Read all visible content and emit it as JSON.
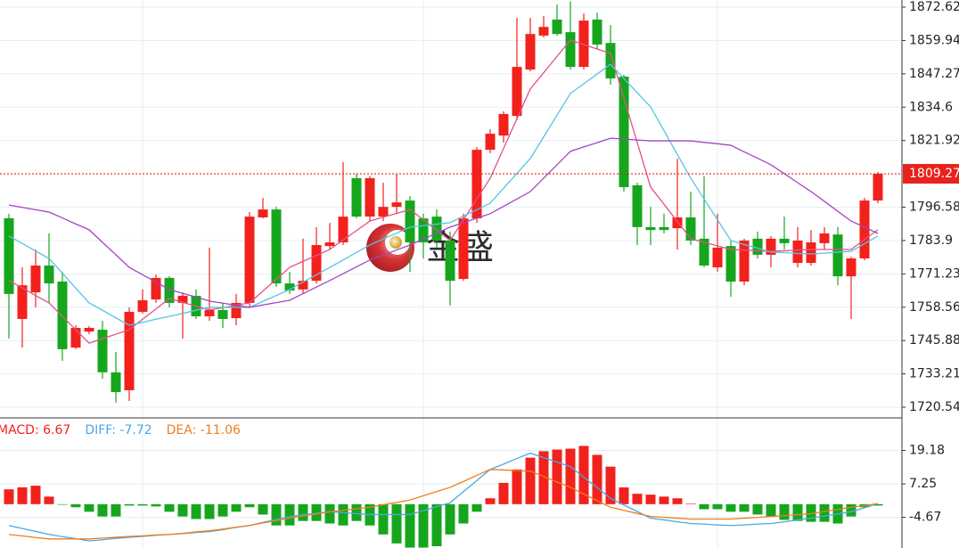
{
  "watermark": "金盛",
  "chart_data": [
    {
      "type": "candlestick",
      "categories": [
        null,
        null,
        null,
        null,
        null,
        null,
        null,
        null,
        null,
        null,
        null,
        null,
        null,
        null,
        null,
        null,
        null,
        null,
        null,
        null,
        null,
        null,
        null,
        null,
        null,
        null,
        null,
        null,
        null,
        null,
        null,
        null,
        null,
        null,
        null,
        null,
        null,
        null,
        null,
        null,
        null,
        null,
        null,
        null,
        null,
        null,
        null,
        null,
        null,
        null,
        null,
        null,
        null,
        null,
        null,
        null,
        null,
        null,
        null,
        null,
        null,
        null,
        null,
        null,
        null,
        null
      ],
      "open": [
        1792.4,
        1754.1,
        1764.2,
        1774.4,
        1768.3,
        1743.2,
        1749.3,
        1750.0,
        1733.8,
        1727.0,
        1756.8,
        1761.5,
        1769.7,
        1760.2,
        1762.9,
        1755.1,
        1757.5,
        1754.4,
        1760.2,
        1792.7,
        1795.7,
        1767.6,
        1765.3,
        1768.6,
        1781.8,
        1783.2,
        1807.6,
        1793.0,
        1793.0,
        1796.7,
        1799.1,
        1792.3,
        1793.0,
        1783.9,
        1769.3,
        1792.3,
        1818.4,
        1823.8,
        1831.3,
        1848.9,
        1861.8,
        1867.9,
        1863.1,
        1849.9,
        1867.9,
        1859.0,
        1846.2,
        1804.9,
        1789.0,
        1789.0,
        1788.6,
        1792.7,
        1784.6,
        1773.7,
        1781.8,
        1768.3,
        1784.6,
        1778.5,
        1784.6,
        1775.4,
        1775.4,
        1782.9,
        1786.2,
        1770.3,
        1777.1,
        1799.1
      ],
      "high": [
        1794.1,
        1773.7,
        1780.5,
        1786.6,
        1772.0,
        1751.7,
        1751.4,
        1753.4,
        1741.6,
        1758.5,
        1765.3,
        1771.0,
        1770.3,
        1764.2,
        1765.3,
        1781.2,
        1760.2,
        1763.6,
        1794.7,
        1800.1,
        1796.7,
        1772.0,
        1784.6,
        1789.0,
        1790.6,
        1813.7,
        1809.3,
        1808.3,
        1805.9,
        1809.3,
        1800.8,
        1794.1,
        1795.7,
        1787.3,
        1794.1,
        1819.4,
        1826.2,
        1833.0,
        1868.5,
        1868.5,
        1869.2,
        1873.6,
        1874.8,
        1870.2,
        1870.6,
        1865.8,
        1846.9,
        1805.9,
        1796.7,
        1794.1,
        1815.0,
        1802.5,
        1808.3,
        1794.1,
        1783.9,
        1784.6,
        1787.3,
        1785.6,
        1793.0,
        1789.0,
        1787.9,
        1789.0,
        1789.0,
        1777.8,
        1800.1,
        1809.9
      ],
      "low": [
        1746.7,
        1743.2,
        1758.5,
        1760.2,
        1738.2,
        1742.6,
        1748.3,
        1731.4,
        1722.3,
        1722.9,
        1756.1,
        1760.2,
        1758.5,
        1746.6,
        1754.1,
        1753.4,
        1750.7,
        1751.7,
        1758.5,
        1792.3,
        1766.3,
        1763.6,
        1763.6,
        1767.6,
        1780.5,
        1782.2,
        1792.3,
        1791.3,
        1791.3,
        1794.0,
        1772.0,
        1777.1,
        1781.2,
        1759.2,
        1768.6,
        1790.6,
        1817.1,
        1821.1,
        1829.6,
        1848.2,
        1861.1,
        1861.8,
        1848.9,
        1848.9,
        1856.7,
        1843.1,
        1802.5,
        1782.2,
        1782.2,
        1786.6,
        1780.5,
        1782.2,
        1773.7,
        1772.0,
        1762.5,
        1766.9,
        1777.1,
        1773.7,
        1780.5,
        1773.7,
        1774.4,
        1780.5,
        1766.9,
        1754.1,
        1776.4,
        1798.1
      ],
      "close": [
        1763.6,
        1766.9,
        1774.4,
        1767.6,
        1742.6,
        1750.7,
        1750.7,
        1733.8,
        1726.3,
        1756.8,
        1761.2,
        1769.7,
        1760.2,
        1762.9,
        1755.1,
        1757.5,
        1754.1,
        1760.2,
        1793.0,
        1795.7,
        1767.6,
        1764.9,
        1768.6,
        1782.2,
        1783.2,
        1793.0,
        1793.0,
        1807.6,
        1796.7,
        1798.4,
        1783.2,
        1783.2,
        1783.9,
        1768.6,
        1792.3,
        1818.4,
        1824.5,
        1832.0,
        1849.9,
        1862.4,
        1865.1,
        1862.4,
        1849.9,
        1867.5,
        1858.4,
        1845.5,
        1804.2,
        1789.0,
        1787.9,
        1787.9,
        1792.7,
        1783.9,
        1774.4,
        1781.2,
        1768.3,
        1783.9,
        1778.5,
        1784.6,
        1782.9,
        1783.9,
        1783.2,
        1786.6,
        1770.3,
        1777.1,
        1799.1,
        1809.3
      ],
      "up_color": "#f2211c",
      "down_color": "#16a61e",
      "series": [
        {
          "color": "#e4508c",
          "values": [
            1768.7,
            1765.9,
            1763.0,
            1760.2,
            1755.1,
            1750.0,
            1744.9,
            1746.6,
            1748.3,
            1750.0,
            1754.0,
            1757.9,
            1761.9,
            1760.4,
            1759.0,
            1757.5,
            1758.4,
            1759.3,
            1760.2,
            1764.7,
            1769.2,
            1773.7,
            1776.0,
            1778.2,
            1780.5,
            1784.1,
            1787.7,
            1791.3,
            1792.8,
            1794.2,
            1795.7,
            1791.8,
            1787.8,
            1783.9,
            1791.8,
            1799.7,
            1807.6,
            1818.9,
            1830.2,
            1841.5,
            1847.7,
            1853.9,
            1860.1,
            1858.4,
            1856.7,
            1855.0,
            1838.1,
            1821.1,
            1804.2,
            1797.7,
            1791.1,
            1784.6,
            1783.2,
            1781.9,
            1780.5,
            1780.3,
            1780.0,
            1779.8,
            1780.0,
            1780.3,
            1780.5,
            1780.5,
            1780.5,
            1780.5,
            1784.3,
            1788.0
          ]
        },
        {
          "color": "#52c6e2",
          "values": [
            1785.6,
            1782.8,
            1779.9,
            1777.1,
            1771.5,
            1765.8,
            1760.2,
            1757.4,
            1754.5,
            1751.7,
            1752.8,
            1754.0,
            1755.1,
            1756.2,
            1757.4,
            1758.5,
            1758.5,
            1758.5,
            1758.5,
            1760.8,
            1763.0,
            1765.3,
            1768.1,
            1770.9,
            1773.7,
            1776.5,
            1779.4,
            1782.2,
            1784.5,
            1786.7,
            1789.0,
            1789.6,
            1790.1,
            1790.7,
            1793.2,
            1795.6,
            1798.1,
            1803.8,
            1809.4,
            1815.1,
            1823.3,
            1831.6,
            1839.8,
            1843.5,
            1847.2,
            1850.9,
            1845.5,
            1840.1,
            1834.7,
            1825.7,
            1816.6,
            1807.6,
            1799.7,
            1791.8,
            1783.9,
            1782.4,
            1781.0,
            1779.5,
            1779.3,
            1779.0,
            1778.8,
            1779.1,
            1779.5,
            1779.8,
            1782.7,
            1785.6
          ]
        },
        {
          "color": "#a444c4",
          "values": [
            1797.4,
            1796.5,
            1795.6,
            1794.7,
            1792.5,
            1790.2,
            1788.0,
            1783.2,
            1778.5,
            1773.7,
            1770.9,
            1768.1,
            1765.3,
            1763.8,
            1762.4,
            1760.9,
            1760.1,
            1759.3,
            1758.5,
            1759.4,
            1760.3,
            1761.2,
            1763.7,
            1766.2,
            1768.7,
            1771.3,
            1773.9,
            1776.5,
            1778.4,
            1780.3,
            1782.2,
            1784.5,
            1786.7,
            1789.0,
            1790.7,
            1792.4,
            1794.1,
            1796.9,
            1799.7,
            1802.5,
            1807.6,
            1812.7,
            1817.8,
            1819.5,
            1821.1,
            1822.8,
            1822.5,
            1822.1,
            1821.8,
            1821.8,
            1821.8,
            1821.8,
            1821.2,
            1820.7,
            1820.1,
            1817.6,
            1815.2,
            1812.7,
            1809.3,
            1805.9,
            1802.5,
            1798.8,
            1795.0,
            1791.3,
            1789.0,
            1786.6
          ]
        }
      ],
      "ylim": [
        1716.82,
        1875.33
      ],
      "yticks": [
        1872.62,
        1859.94,
        1847.27,
        1834.6,
        1821.92,
        1796.58,
        1783.9,
        1771.23,
        1758.56,
        1745.88,
        1733.21,
        1720.54
      ],
      "yticks_labels_note_free": true,
      "last_price": 1809.27,
      "last_price_color": "#e8221c",
      "grid": true
    },
    {
      "type": "macd",
      "series": [
        {
          "name": "MACD: 6.67",
          "type": "histogram",
          "color": "#f2211c",
          "negative_color": "#16a61e",
          "values": [
            5.3,
            6.0,
            6.6,
            2.7,
            -0.2,
            -1.1,
            -2.7,
            -4.4,
            -4.4,
            -0.5,
            -0.5,
            -0.8,
            -2.7,
            -4.4,
            -5.3,
            -5.3,
            -4.4,
            -2.7,
            -1.1,
            -3.7,
            -7.6,
            -7.6,
            -6.0,
            -6.0,
            -6.9,
            -7.6,
            -6.0,
            -7.6,
            -10.8,
            -14.0,
            -15.5,
            -15.5,
            -15.0,
            -10.8,
            -6.9,
            -2.7,
            2.1,
            7.6,
            12.4,
            16.6,
            18.9,
            19.5,
            19.8,
            20.8,
            17.6,
            13.4,
            6.0,
            3.7,
            3.4,
            2.7,
            2.1,
            0.2,
            -1.8,
            -1.8,
            -2.7,
            -2.7,
            -3.7,
            -4.4,
            -5.6,
            -6.0,
            -6.3,
            -6.3,
            -6.9,
            -4.4,
            -1.1,
            -0.5
          ]
        },
        {
          "name": "DIFF: -7.72",
          "type": "line",
          "color": "#4aa8e6",
          "values": [
            -7.6,
            -8.7,
            -9.7,
            -10.8,
            -11.6,
            -12.3,
            -13.1,
            -12.7,
            -12.2,
            -11.8,
            -11.5,
            -11.1,
            -10.8,
            -10.5,
            -10.1,
            -9.8,
            -9.1,
            -8.3,
            -7.6,
            -6.5,
            -5.5,
            -4.4,
            -3.8,
            -3.3,
            -2.7,
            -3.0,
            -3.4,
            -3.7,
            -3.7,
            -3.7,
            -3.7,
            -2.3,
            -0.9,
            0.5,
            4.5,
            8.4,
            12.4,
            14.3,
            16.3,
            18.2,
            16.6,
            15.0,
            13.4,
            9.6,
            5.9,
            2.1,
            -0.3,
            -2.6,
            -5.0,
            -5.6,
            -6.3,
            -6.9,
            -7.1,
            -7.4,
            -7.6,
            -7.4,
            -7.1,
            -6.9,
            -6.3,
            -5.6,
            -5.0,
            -4.2,
            -3.5,
            -2.7,
            -1.3,
            0.2
          ]
        },
        {
          "name": "DEA: -11.06",
          "type": "line",
          "color": "#ee7d1e",
          "values": [
            -10.8,
            -11.3,
            -11.9,
            -12.4,
            -12.4,
            -12.4,
            -12.4,
            -12.1,
            -11.8,
            -11.5,
            -11.3,
            -11.0,
            -10.8,
            -10.4,
            -9.9,
            -9.5,
            -8.9,
            -8.2,
            -7.6,
            -6.7,
            -5.9,
            -5.0,
            -4.2,
            -3.5,
            -2.7,
            -2.2,
            -1.6,
            -1.1,
            -0.2,
            0.6,
            1.5,
            3.0,
            4.5,
            6.0,
            8.1,
            10.3,
            12.4,
            12.2,
            12.0,
            11.8,
            9.9,
            7.9,
            6.0,
            3.6,
            1.3,
            -1.1,
            -2.2,
            -3.3,
            -4.4,
            -4.7,
            -5.0,
            -5.3,
            -5.3,
            -5.3,
            -5.3,
            -5.0,
            -4.7,
            -4.4,
            -4.1,
            -3.7,
            -3.4,
            -2.6,
            -1.9,
            -1.1,
            -0.5,
            0.2
          ]
        }
      ],
      "ylim": [
        -15.64,
        30.47
      ],
      "yticks": [
        19.18,
        7.25,
        -4.67
      ],
      "grid": true
    }
  ]
}
